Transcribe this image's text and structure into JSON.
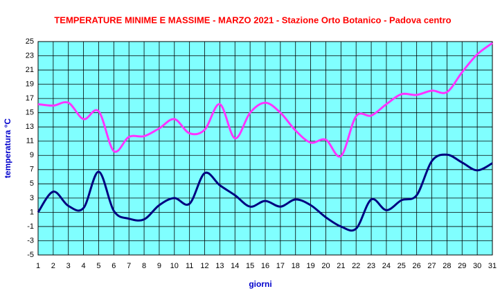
{
  "chart_data": {
    "type": "line",
    "title": "TEMPERATURE MINIME E MASSIME  - MARZO  2021 - Stazione Orto Botanico - Padova centro",
    "x_label": "giorni",
    "y_label": "temperatura °C",
    "x": [
      1,
      2,
      3,
      4,
      5,
      6,
      7,
      8,
      9,
      10,
      11,
      12,
      13,
      14,
      15,
      16,
      17,
      18,
      19,
      20,
      21,
      22,
      23,
      24,
      25,
      26,
      27,
      28,
      29,
      30,
      31
    ],
    "series": [
      {
        "color": "#ff33ff",
        "values": [
          16.2,
          16.0,
          16.4,
          14.1,
          15.2,
          9.6,
          11.6,
          11.7,
          12.8,
          14.1,
          12.1,
          12.6,
          16.2,
          11.4,
          15.0,
          16.4,
          15.0,
          12.5,
          10.8,
          11.2,
          8.9,
          14.5,
          14.6,
          16.2,
          17.6,
          17.5,
          18.1,
          17.9,
          20.7,
          23.2,
          24.8
        ]
      },
      {
        "color": "#000080",
        "values": [
          1.0,
          3.9,
          1.9,
          1.6,
          6.7,
          1.2,
          0.1,
          0.0,
          2.0,
          3.0,
          2.2,
          6.5,
          4.8,
          3.4,
          1.8,
          2.6,
          1.8,
          2.8,
          2.0,
          0.3,
          -1.0,
          -1.3,
          2.8,
          1.3,
          2.7,
          3.4,
          8.2,
          9.1,
          8.0,
          6.9,
          7.9
        ]
      }
    ],
    "xlim": [
      1,
      31
    ],
    "xticks": [
      1,
      2,
      3,
      4,
      5,
      6,
      7,
      8,
      9,
      10,
      11,
      12,
      13,
      14,
      15,
      16,
      17,
      18,
      19,
      20,
      21,
      22,
      23,
      24,
      25,
      26,
      27,
      28,
      29,
      30,
      31
    ],
    "ylim": [
      -5,
      25
    ],
    "yticks": [
      -5,
      -3,
      -1,
      1,
      3,
      5,
      7,
      9,
      11,
      13,
      15,
      17,
      19,
      21,
      23,
      25
    ],
    "grid": true,
    "plot_background": "#80ffff"
  }
}
